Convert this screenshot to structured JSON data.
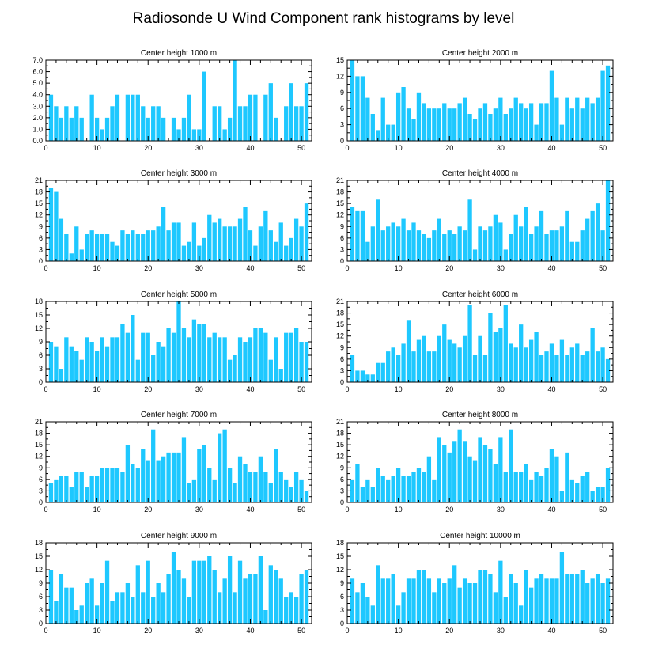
{
  "figure": {
    "title": "Radiosonde U Wind Component rank histograms by level"
  },
  "style": {
    "bar_color": "#1ec8ff",
    "axis_color": "#000000",
    "background": "#ffffff"
  },
  "chart_data": [
    {
      "type": "bar",
      "title": "Center height 1000 m",
      "x_start": 1,
      "xlim": [
        0,
        52
      ],
      "ylim": [
        0,
        7
      ],
      "yticks": [
        0,
        1,
        2,
        3,
        4,
        5,
        6,
        7
      ],
      "ytick_labels": [
        "0.0",
        "1.0",
        "2.0",
        "3.0",
        "4.0",
        "5.0",
        "6.0",
        "7.0"
      ],
      "xticks": [
        0,
        10,
        20,
        30,
        40,
        50
      ],
      "values": [
        4,
        3,
        2,
        3,
        2,
        3,
        2,
        0,
        4,
        2,
        1,
        2,
        3,
        4,
        0,
        4,
        4,
        4,
        3,
        2,
        3,
        3,
        2,
        0,
        2,
        1,
        2,
        4,
        1,
        1,
        6,
        0,
        3,
        3,
        1,
        2,
        7,
        3,
        3,
        4,
        4,
        0,
        4,
        5,
        2,
        0,
        3,
        5,
        3,
        3,
        5
      ]
    },
    {
      "type": "bar",
      "title": "Center height 2000 m",
      "x_start": 1,
      "xlim": [
        0,
        52
      ],
      "ylim": [
        0,
        15
      ],
      "yticks": [
        0,
        3,
        6,
        9,
        12,
        15
      ],
      "ytick_labels": [
        "0",
        "3",
        "6",
        "9",
        "12",
        "15"
      ],
      "xticks": [
        0,
        10,
        20,
        30,
        40,
        50
      ],
      "values": [
        15,
        12,
        12,
        8,
        5,
        2,
        8,
        3,
        3,
        9,
        10,
        6,
        4,
        9,
        7,
        6,
        6,
        6,
        7,
        6,
        6,
        7,
        8,
        5,
        4,
        6,
        7,
        5,
        6,
        8,
        5,
        6,
        8,
        7,
        6,
        7,
        3,
        7,
        7,
        13,
        8,
        3,
        8,
        6,
        8,
        6,
        8,
        7,
        8,
        13,
        14
      ]
    },
    {
      "type": "bar",
      "title": "Center height 3000 m",
      "x_start": 1,
      "xlim": [
        0,
        52
      ],
      "ylim": [
        0,
        21
      ],
      "yticks": [
        0,
        3,
        6,
        9,
        12,
        15,
        18,
        21
      ],
      "ytick_labels": [
        "0",
        "3",
        "6",
        "9",
        "12",
        "15",
        "18",
        "21"
      ],
      "xticks": [
        0,
        10,
        20,
        30,
        40,
        50
      ],
      "values": [
        19,
        18,
        11,
        7,
        2,
        9,
        3,
        7,
        8,
        7,
        7,
        7,
        5,
        4,
        8,
        7,
        8,
        7,
        7,
        8,
        8,
        9,
        14,
        8,
        10,
        10,
        4,
        5,
        10,
        4,
        6,
        12,
        10,
        11,
        9,
        9,
        9,
        11,
        14,
        8,
        4,
        9,
        13,
        8,
        5,
        10,
        4,
        6,
        11,
        9,
        15
      ]
    },
    {
      "type": "bar",
      "title": "Center height 4000 m",
      "x_start": 1,
      "xlim": [
        0,
        52
      ],
      "ylim": [
        0,
        21
      ],
      "yticks": [
        0,
        3,
        6,
        9,
        12,
        15,
        18,
        21
      ],
      "ytick_labels": [
        "0",
        "3",
        "6",
        "9",
        "12",
        "15",
        "18",
        "21"
      ],
      "xticks": [
        0,
        10,
        20,
        30,
        40,
        50
      ],
      "values": [
        14,
        13,
        13,
        5,
        9,
        16,
        8,
        9,
        10,
        9,
        11,
        8,
        10,
        8,
        7,
        6,
        8,
        11,
        7,
        8,
        7,
        9,
        8,
        16,
        3,
        9,
        8,
        9,
        12,
        10,
        3,
        7,
        12,
        9,
        14,
        7,
        9,
        13,
        7,
        8,
        8,
        9,
        13,
        5,
        5,
        8,
        11,
        13,
        15,
        8,
        21
      ]
    },
    {
      "type": "bar",
      "title": "Center height 5000 m",
      "x_start": 1,
      "xlim": [
        0,
        52
      ],
      "ylim": [
        0,
        18
      ],
      "yticks": [
        0,
        3,
        6,
        9,
        12,
        15,
        18
      ],
      "ytick_labels": [
        "0",
        "3",
        "6",
        "9",
        "12",
        "15",
        "18"
      ],
      "xticks": [
        0,
        10,
        20,
        30,
        40,
        50
      ],
      "values": [
        9,
        8,
        3,
        10,
        8,
        7,
        5,
        10,
        9,
        7,
        10,
        8,
        10,
        10,
        13,
        11,
        15,
        5,
        11,
        11,
        6,
        9,
        8,
        12,
        11,
        18,
        12,
        10,
        14,
        13,
        13,
        10,
        11,
        10,
        10,
        5,
        6,
        10,
        9,
        10,
        12,
        12,
        11,
        5,
        10,
        3,
        11,
        11,
        12,
        9,
        9
      ]
    },
    {
      "type": "bar",
      "title": "Center height 6000 m",
      "x_start": 1,
      "xlim": [
        0,
        52
      ],
      "ylim": [
        0,
        21
      ],
      "yticks": [
        0,
        3,
        6,
        9,
        12,
        15,
        18,
        21
      ],
      "ytick_labels": [
        "0",
        "3",
        "6",
        "9",
        "12",
        "15",
        "18",
        "21"
      ],
      "xticks": [
        0,
        10,
        20,
        30,
        40,
        50
      ],
      "values": [
        7,
        3,
        3,
        2,
        2,
        5,
        5,
        8,
        9,
        7,
        10,
        16,
        8,
        11,
        12,
        8,
        8,
        12,
        15,
        11,
        10,
        9,
        12,
        20,
        7,
        12,
        7,
        18,
        13,
        14,
        20,
        10,
        9,
        15,
        9,
        11,
        13,
        7,
        8,
        10,
        7,
        11,
        7,
        9,
        10,
        7,
        8,
        14,
        8,
        9,
        6
      ]
    },
    {
      "type": "bar",
      "title": "Center height 7000 m",
      "x_start": 1,
      "xlim": [
        0,
        52
      ],
      "ylim": [
        0,
        21
      ],
      "yticks": [
        0,
        3,
        6,
        9,
        12,
        15,
        18,
        21
      ],
      "ytick_labels": [
        "0",
        "3",
        "6",
        "9",
        "12",
        "15",
        "18",
        "21"
      ],
      "xticks": [
        0,
        10,
        20,
        30,
        40,
        50
      ],
      "values": [
        5,
        6,
        7,
        7,
        4,
        8,
        8,
        4,
        7,
        7,
        9,
        9,
        9,
        9,
        8,
        15,
        10,
        9,
        14,
        11,
        19,
        11,
        12,
        13,
        13,
        13,
        17,
        5,
        6,
        14,
        15,
        9,
        6,
        18,
        19,
        9,
        5,
        12,
        10,
        8,
        8,
        12,
        8,
        5,
        14,
        8,
        6,
        4,
        8,
        6,
        3
      ]
    },
    {
      "type": "bar",
      "title": "Center height 8000 m",
      "x_start": 1,
      "xlim": [
        0,
        52
      ],
      "ylim": [
        0,
        21
      ],
      "yticks": [
        0,
        3,
        6,
        9,
        12,
        15,
        18,
        21
      ],
      "ytick_labels": [
        "0",
        "3",
        "6",
        "9",
        "12",
        "15",
        "18",
        "21"
      ],
      "xticks": [
        0,
        10,
        20,
        30,
        40,
        50
      ],
      "values": [
        6,
        10,
        4,
        6,
        4,
        9,
        7,
        6,
        7,
        9,
        7,
        7,
        8,
        9,
        8,
        12,
        6,
        17,
        15,
        13,
        16,
        19,
        16,
        12,
        11,
        17,
        15,
        14,
        10,
        17,
        8,
        19,
        8,
        8,
        10,
        6,
        8,
        7,
        9,
        14,
        12,
        3,
        13,
        6,
        5,
        7,
        8,
        3,
        4,
        4,
        9
      ]
    },
    {
      "type": "bar",
      "title": "Center height 9000 m",
      "x_start": 1,
      "xlim": [
        0,
        52
      ],
      "ylim": [
        0,
        18
      ],
      "yticks": [
        0,
        3,
        6,
        9,
        12,
        15,
        18
      ],
      "ytick_labels": [
        "0",
        "3",
        "6",
        "9",
        "12",
        "15",
        "18"
      ],
      "xticks": [
        0,
        10,
        20,
        30,
        40,
        50
      ],
      "values": [
        12,
        5,
        11,
        8,
        8,
        3,
        4,
        9,
        10,
        4,
        9,
        14,
        5,
        7,
        7,
        9,
        6,
        13,
        7,
        14,
        6,
        9,
        7,
        11,
        16,
        12,
        10,
        6,
        14,
        14,
        14,
        15,
        12,
        7,
        10,
        15,
        7,
        14,
        10,
        11,
        11,
        15,
        3,
        13,
        12,
        10,
        6,
        7,
        6,
        11,
        12
      ]
    },
    {
      "type": "bar",
      "title": "Center height 10000 m",
      "x_start": 1,
      "xlim": [
        0,
        52
      ],
      "ylim": [
        0,
        18
      ],
      "yticks": [
        0,
        3,
        6,
        9,
        12,
        15,
        18
      ],
      "ytick_labels": [
        "0",
        "3",
        "6",
        "9",
        "12",
        "15",
        "18"
      ],
      "xticks": [
        0,
        10,
        20,
        30,
        40,
        50
      ],
      "values": [
        10,
        7,
        9,
        6,
        4,
        13,
        10,
        10,
        11,
        4,
        7,
        10,
        10,
        12,
        12,
        10,
        7,
        10,
        9,
        10,
        13,
        8,
        10,
        9,
        9,
        12,
        12,
        11,
        7,
        14,
        6,
        11,
        9,
        4,
        12,
        8,
        10,
        11,
        10,
        10,
        10,
        16,
        11,
        11,
        11,
        12,
        9,
        10,
        11,
        9,
        10
      ]
    }
  ]
}
